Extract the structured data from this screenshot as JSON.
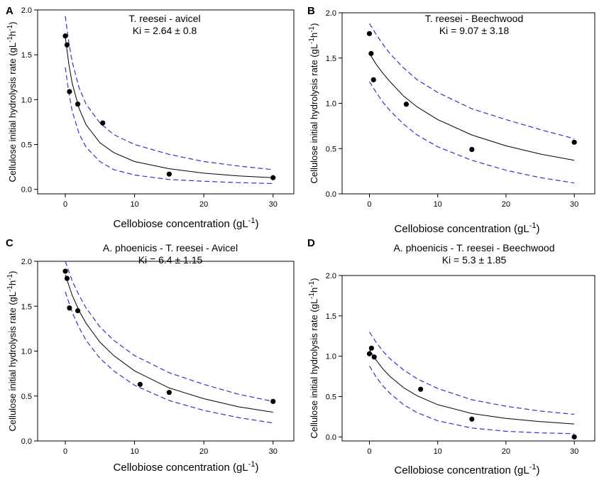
{
  "chart_data": [
    {
      "type": "scatter",
      "panel_label": "A",
      "title_line1": "T. reesei - avicel",
      "title_line2": "Ki =  2.64 ± 0.8",
      "xlabel": "Cellobiose concentration (gL",
      "xlabel_sup": "-1",
      "xlabel_close": ")",
      "ylabel_main": "Cellulose initial hydrolysis rate (gL",
      "ylabel_sup1": "-1",
      "ylabel_mid": "h",
      "ylabel_sup2": "-1",
      "ylabel_close": ")",
      "xlim": [
        -4,
        33
      ],
      "ylim": [
        -0.05,
        2.0
      ],
      "xticks": [
        "0",
        "10",
        "20",
        "30"
      ],
      "yticks": [
        "0.0",
        "0.5",
        "1.0",
        "1.5",
        "2.0"
      ],
      "points": {
        "x": [
          0.0,
          0.25,
          0.6,
          1.8,
          5.4,
          15.0,
          30.0
        ],
        "y": [
          1.71,
          1.61,
          1.09,
          0.95,
          0.74,
          0.17,
          0.13
        ]
      },
      "series": [
        {
          "name": "fit",
          "color": "#000000",
          "style": "solid",
          "x": [
            0,
            0.5,
            1,
            2,
            3,
            5,
            7,
            10,
            15,
            20,
            25,
            30
          ],
          "y": [
            1.7,
            1.4,
            1.18,
            0.9,
            0.72,
            0.52,
            0.41,
            0.31,
            0.23,
            0.18,
            0.15,
            0.13
          ]
        },
        {
          "name": "upper 95% CI",
          "color": "#3333cc",
          "style": "dashed",
          "x": [
            0,
            0.5,
            1,
            2,
            3,
            5,
            7,
            10,
            15,
            20,
            25,
            30
          ],
          "y": [
            1.93,
            1.64,
            1.42,
            1.13,
            0.95,
            0.74,
            0.61,
            0.5,
            0.39,
            0.31,
            0.26,
            0.22
          ]
        },
        {
          "name": "lower 95% CI",
          "color": "#3333cc",
          "style": "dashed",
          "x": [
            0,
            0.5,
            1,
            2,
            3,
            5,
            7,
            10,
            15,
            20,
            25,
            30
          ],
          "y": [
            1.36,
            1.08,
            0.87,
            0.62,
            0.47,
            0.31,
            0.22,
            0.16,
            0.11,
            0.09,
            0.075,
            0.065
          ]
        }
      ]
    },
    {
      "type": "scatter",
      "panel_label": "B",
      "title_line1": "T. reesei - Beechwood",
      "title_line2": "Ki = 9.07 ± 3.18",
      "xlabel": "Cellobiose concentration (gL",
      "xlabel_sup": "-1",
      "xlabel_close": ")",
      "ylabel_main": "Cellulose initial hydrolysis rate (gL",
      "ylabel_sup1": "-1",
      "ylabel_mid": "h",
      "ylabel_sup2": "-1",
      "ylabel_close": ")",
      "xlim": [
        -4,
        33
      ],
      "ylim": [
        0.0,
        2.0
      ],
      "xticks": [
        "0",
        "10",
        "20",
        "30"
      ],
      "yticks": [
        "0.0",
        "0.5",
        "1.0",
        "1.5",
        "2.0"
      ],
      "points": {
        "x": [
          0.0,
          0.25,
          0.6,
          5.4,
          15.0,
          30.0
        ],
        "y": [
          1.77,
          1.55,
          1.26,
          0.99,
          0.49,
          0.57
        ]
      },
      "series": [
        {
          "name": "fit",
          "color": "#000000",
          "style": "solid",
          "x": [
            0,
            1,
            2,
            3,
            5,
            7,
            10,
            15,
            20,
            25,
            30
          ],
          "y": [
            1.55,
            1.43,
            1.33,
            1.24,
            1.08,
            0.96,
            0.82,
            0.65,
            0.53,
            0.44,
            0.37
          ]
        },
        {
          "name": "upper 95% CI",
          "color": "#3333cc",
          "style": "dashed",
          "x": [
            0,
            1,
            2,
            3,
            5,
            7,
            10,
            15,
            20,
            25,
            30
          ],
          "y": [
            1.88,
            1.76,
            1.65,
            1.55,
            1.39,
            1.26,
            1.12,
            0.94,
            0.82,
            0.71,
            0.61
          ]
        },
        {
          "name": "lower 95% CI",
          "color": "#3333cc",
          "style": "dashed",
          "x": [
            0,
            1,
            2,
            3,
            5,
            7,
            10,
            15,
            20,
            25,
            30
          ],
          "y": [
            1.24,
            1.12,
            1.01,
            0.92,
            0.77,
            0.65,
            0.52,
            0.37,
            0.26,
            0.18,
            0.12
          ]
        }
      ]
    },
    {
      "type": "scatter",
      "panel_label": "C",
      "title_line1": "A. phoenicis - T. reesei - Avicel",
      "title_line2": "Ki = 6.4 ± 1.15",
      "xlabel": "Cellobiose concentration (gL",
      "xlabel_sup": "-1",
      "xlabel_close": ")",
      "ylabel_main": "Cellulose initial hydrolysis rate (gL",
      "ylabel_sup1": "-1",
      "ylabel_mid": "h",
      "ylabel_sup2": "-1",
      "ylabel_close": ")",
      "xlim": [
        -4,
        33
      ],
      "ylim": [
        0.0,
        2.0
      ],
      "xticks": [
        "0",
        "10",
        "20",
        "30"
      ],
      "yticks": [
        "0.0",
        "0.5",
        "1.0",
        "1.5",
        "2.0"
      ],
      "points": {
        "x": [
          0.0,
          0.25,
          0.6,
          1.8,
          10.8,
          15.0,
          30.0
        ],
        "y": [
          1.89,
          1.81,
          1.48,
          1.45,
          0.63,
          0.54,
          0.44
        ]
      },
      "series": [
        {
          "name": "fit",
          "color": "#000000",
          "style": "solid",
          "x": [
            0,
            1,
            2,
            3,
            5,
            7,
            10,
            15,
            20,
            25,
            30
          ],
          "y": [
            1.85,
            1.62,
            1.45,
            1.31,
            1.1,
            0.95,
            0.78,
            0.59,
            0.47,
            0.38,
            0.32
          ]
        },
        {
          "name": "upper 95% CI",
          "color": "#3333cc",
          "style": "dashed",
          "x": [
            0,
            1,
            2,
            3,
            5,
            7,
            10,
            15,
            20,
            25,
            30
          ],
          "y": [
            2.0,
            1.78,
            1.62,
            1.48,
            1.27,
            1.12,
            0.95,
            0.76,
            0.63,
            0.52,
            0.44
          ]
        },
        {
          "name": "lower 95% CI",
          "color": "#3333cc",
          "style": "dashed",
          "x": [
            0,
            1,
            2,
            3,
            5,
            7,
            10,
            15,
            20,
            25,
            30
          ],
          "y": [
            1.66,
            1.43,
            1.26,
            1.12,
            0.92,
            0.78,
            0.62,
            0.45,
            0.34,
            0.26,
            0.2
          ]
        }
      ]
    },
    {
      "type": "scatter",
      "panel_label": "D",
      "title_line1": "A. phoenicis - T. reesei - Beechwood",
      "title_line2": "Ki = 5.3 ± 1.85",
      "xlabel": "Cellobiose concentration (gL",
      "xlabel_sup": "-1",
      "xlabel_close": ")",
      "ylabel_main": "Cellulose initial hydrolysis rate (gL",
      "ylabel_sup1": "-1",
      "ylabel_mid": "h",
      "ylabel_sup2": "-1",
      "ylabel_close": ")",
      "xlim": [
        -4,
        33
      ],
      "ylim": [
        -0.05,
        2.0
      ],
      "xticks": [
        "0",
        "10",
        "20",
        "30"
      ],
      "yticks": [
        "0.0",
        "0.5",
        "1.0",
        "1.5",
        "2.0"
      ],
      "points": {
        "x": [
          0.0,
          0.3,
          0.7,
          7.5,
          15.0,
          30.0
        ],
        "y": [
          1.03,
          1.1,
          0.99,
          0.59,
          0.22,
          0.0
        ]
      },
      "series": [
        {
          "name": "fit",
          "color": "#000000",
          "style": "solid",
          "x": [
            0,
            1,
            2,
            3,
            5,
            7,
            10,
            15,
            20,
            25,
            30
          ],
          "y": [
            1.08,
            0.95,
            0.84,
            0.75,
            0.61,
            0.51,
            0.4,
            0.29,
            0.23,
            0.19,
            0.16
          ]
        },
        {
          "name": "upper 95% CI",
          "color": "#3333cc",
          "style": "dashed",
          "x": [
            0,
            1,
            2,
            3,
            5,
            7,
            10,
            15,
            20,
            25,
            30
          ],
          "y": [
            1.3,
            1.17,
            1.06,
            0.97,
            0.83,
            0.72,
            0.6,
            0.46,
            0.38,
            0.32,
            0.28
          ]
        },
        {
          "name": "lower 95% CI",
          "color": "#3333cc",
          "style": "dashed",
          "x": [
            0,
            1,
            2,
            3,
            5,
            7,
            10,
            15,
            20,
            25,
            30
          ],
          "y": [
            0.88,
            0.74,
            0.63,
            0.54,
            0.4,
            0.3,
            0.2,
            0.11,
            0.07,
            0.05,
            0.04
          ]
        }
      ]
    }
  ]
}
